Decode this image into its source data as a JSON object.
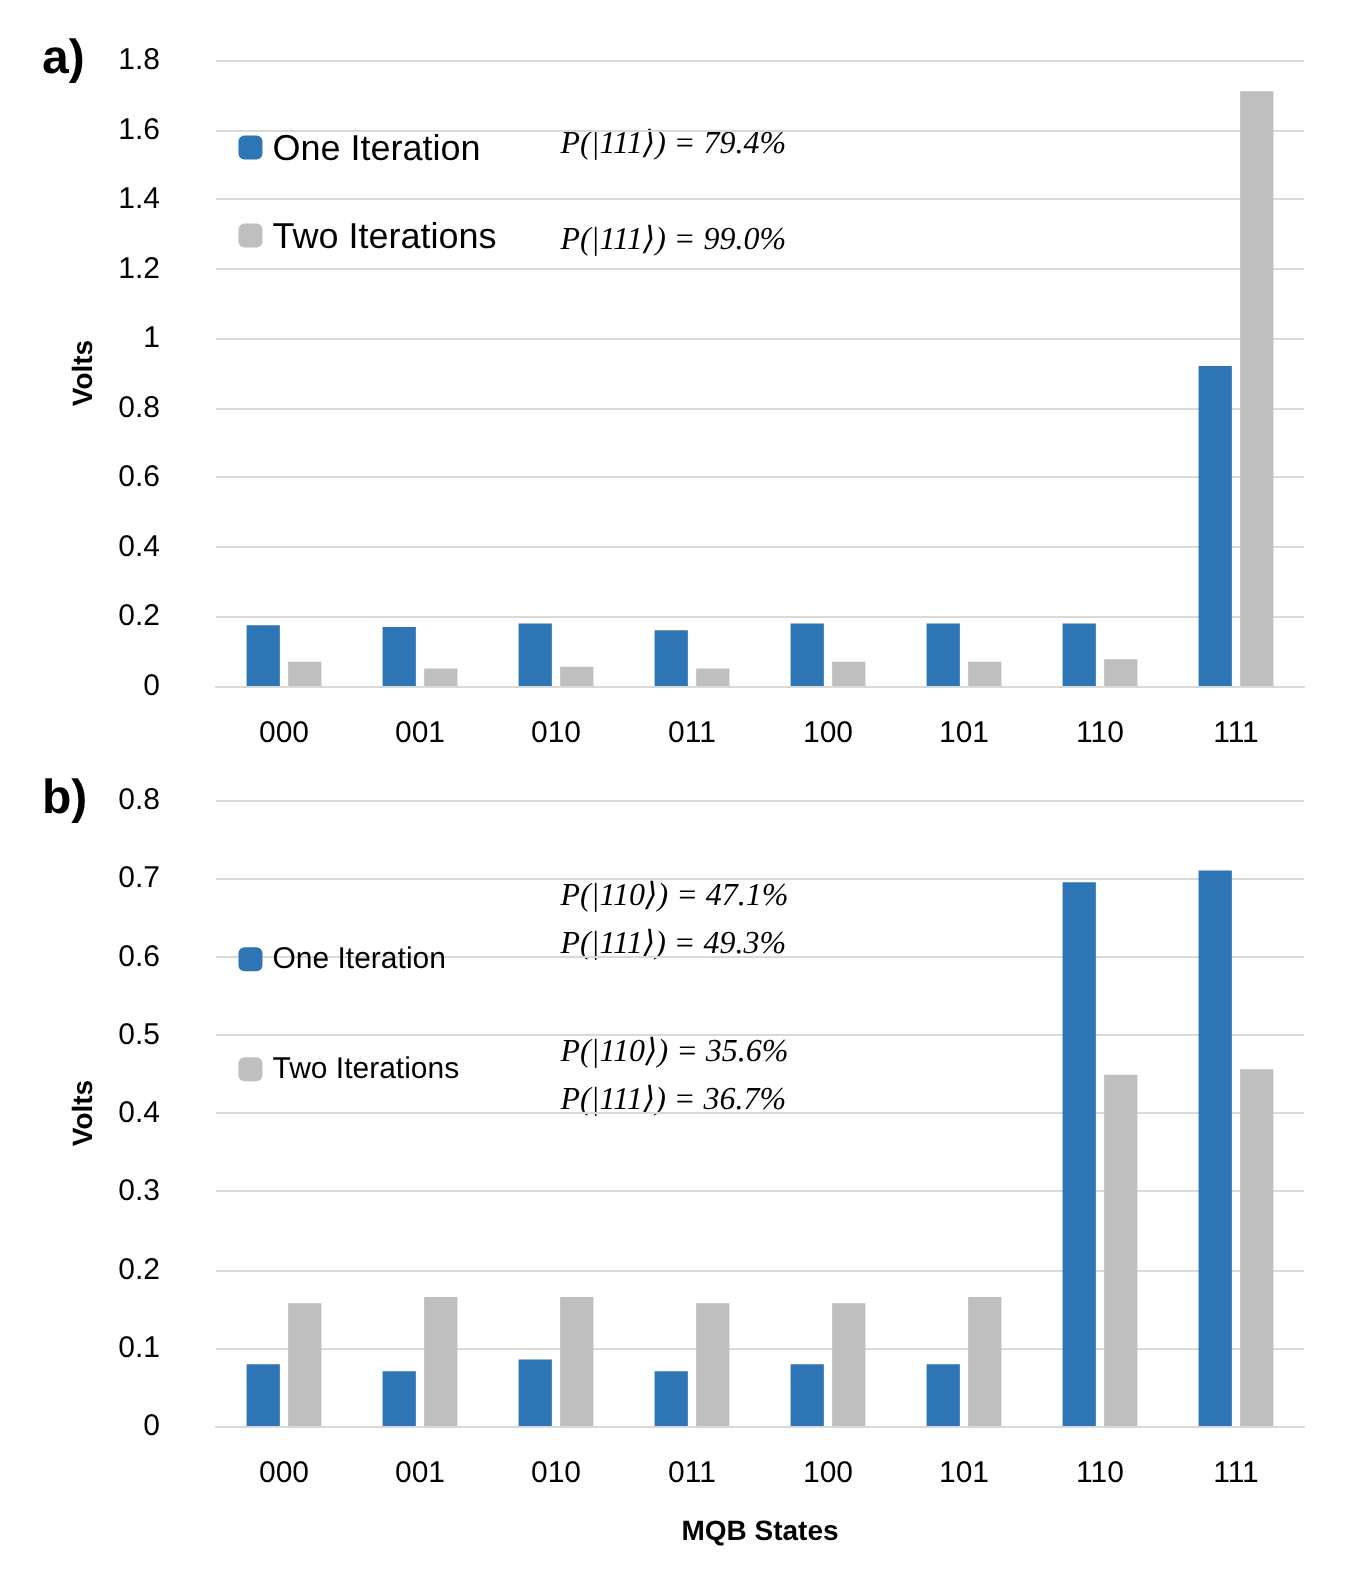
{
  "chart_data": [
    {
      "type": "bar",
      "title": "a)",
      "ylabel": "Volts",
      "categories": [
        "000",
        "001",
        "010",
        "011",
        "100",
        "101",
        "110",
        "111"
      ],
      "series": [
        {
          "name": "One Iteration",
          "color": "#2e75b6",
          "values": [
            0.175,
            0.17,
            0.18,
            0.16,
            0.18,
            0.18,
            0.18,
            0.92
          ]
        },
        {
          "name": "Two Iterations",
          "color": "#bfbfbf",
          "values": [
            0.07,
            0.05,
            0.055,
            0.05,
            0.07,
            0.07,
            0.077,
            1.71
          ]
        }
      ],
      "ylim": [
        0,
        1.8
      ],
      "yticks": [
        0,
        0.2,
        0.4,
        0.6,
        0.8,
        1,
        1.2,
        1.4,
        1.6,
        1.8
      ],
      "grid": "y",
      "legend": "top left",
      "annotations": [
        "P(|111⟩) = 79.4%",
        "P(|111⟩) = 99.0%"
      ]
    },
    {
      "type": "bar",
      "title": "b)",
      "ylabel": "Volts",
      "xlabel": "MQB States",
      "categories": [
        "000",
        "001",
        "010",
        "011",
        "100",
        "101",
        "110",
        "111"
      ],
      "series": [
        {
          "name": "One Iteration",
          "color": "#2e75b6",
          "values": [
            0.079,
            0.07,
            0.085,
            0.07,
            0.079,
            0.079,
            0.695,
            0.71
          ]
        },
        {
          "name": "Two Iterations",
          "color": "#bfbfbf",
          "values": [
            0.157,
            0.165,
            0.165,
            0.157,
            0.157,
            0.165,
            0.449,
            0.456
          ]
        }
      ],
      "ylim": [
        0,
        0.8
      ],
      "yticks": [
        0,
        0.1,
        0.2,
        0.3,
        0.4,
        0.5,
        0.6,
        0.7,
        0.8
      ],
      "grid": "y",
      "legend": "top left",
      "annotations": [
        "P(|110⟩) = 47.1%",
        "P(|111⟩) = 49.3%",
        "P(|110⟩) = 35.6%",
        "P(|111⟩) = 36.7%"
      ]
    }
  ]
}
